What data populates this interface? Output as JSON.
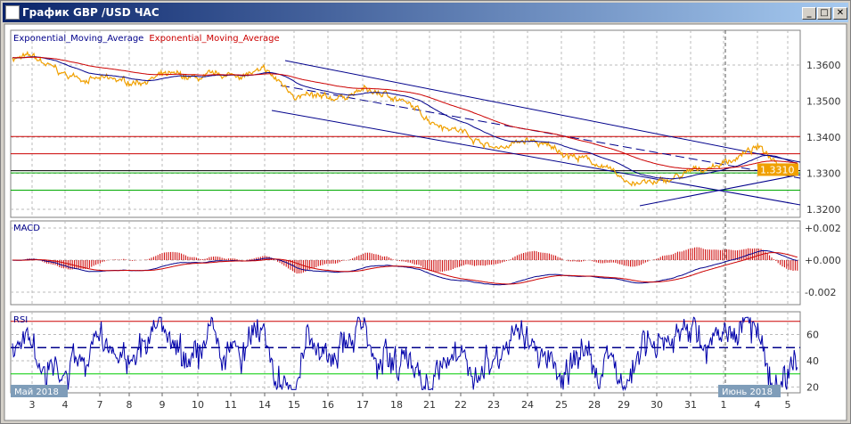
{
  "window": {
    "title": "График GBP /USD  ЧАС",
    "minimize": "_",
    "maximize": "□",
    "close": "✕"
  },
  "legend": [
    {
      "text": "Exponential_Moving_Average",
      "color": "#00008b"
    },
    {
      "text": "Exponential_Moving_Average",
      "color": "#cc0000"
    }
  ],
  "panels": {
    "macd_label": "MACD",
    "rsi_label": "RSI"
  },
  "months": {
    "may": "Май 2018",
    "june": "Июнь 2018"
  },
  "chart_data": [
    {
      "type": "line",
      "ylim": [
        1.319,
        1.3665
      ],
      "yticks": [
        "1.3600",
        "1.3500",
        "1.3400",
        "1.3300",
        "1.3200"
      ],
      "last_price": "1.3310",
      "colors": {
        "price": "#f0a000",
        "ema_fast": "#00008b",
        "ema_slow": "#cc0000"
      },
      "x": [
        "3",
        "4",
        "7",
        "8",
        "9",
        "10",
        "11",
        "14",
        "15",
        "16",
        "17",
        "18",
        "21",
        "22",
        "23",
        "24",
        "25",
        "28",
        "29",
        "30",
        "31",
        "1",
        "4",
        "5"
      ],
      "close": [
        1.362,
        1.357,
        1.356,
        1.355,
        1.357,
        1.356,
        1.357,
        1.358,
        1.352,
        1.35,
        1.353,
        1.351,
        1.345,
        1.342,
        1.337,
        1.339,
        1.336,
        1.333,
        1.328,
        1.327,
        1.33,
        1.333,
        1.337,
        1.332
      ],
      "horizontal_levels": [
        {
          "y": 1.3402,
          "color": "#cc0000"
        },
        {
          "y": 1.3354,
          "color": "#cc0000"
        },
        {
          "y": 1.3307,
          "color": "#000000"
        },
        {
          "y": 1.3301,
          "color": "#00aa00"
        },
        {
          "y": 1.3253,
          "color": "#00aa00"
        }
      ]
    },
    {
      "type": "line",
      "name": "MACD",
      "ylim": [
        -0.003,
        0.0027
      ],
      "yticks": [
        "+0.002",
        "+0.000",
        "-0.002"
      ]
    },
    {
      "type": "line",
      "name": "RSI",
      "ylim": [
        15,
        75
      ],
      "yticks": [
        "60",
        "40",
        "20"
      ],
      "levels": [
        70,
        50,
        30
      ]
    }
  ]
}
